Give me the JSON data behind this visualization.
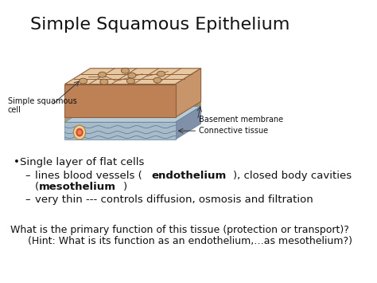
{
  "title": "Simple Squamous Epithelium",
  "title_fontsize": 16,
  "title_fontfamily": "DejaVu Sans",
  "bg_color": "#ffffff",
  "text_color": "#111111",
  "label_simple_squamous": "Simple squamous\ncell",
  "label_basement": "Basement membrane",
  "label_connective": "Connective tissue",
  "cell_color": "#deb887",
  "cell_edge_color": "#8b6040",
  "cell_face_light": "#e8c8a0",
  "basement_top_color": "#c8c0a0",
  "connective_top_color": "#b8ccd8",
  "connective_front_color": "#a8bcc8",
  "bullet1": "Single layer of flat cells",
  "sub1_p1": "lines blood vessels (",
  "sub1_b1": "endothelium",
  "sub1_p2": "), closed body cavities",
  "sub1_cont_p1": "(",
  "sub1_cont_b2": "mesothelium",
  "sub1_cont_p3": ")",
  "sub2": "very thin --- controls diffusion, osmosis and filtration",
  "question_line1": "What is the primary function of this tissue (protection or transport)?",
  "question_line2": "(Hint: What is its function as an endothelium,…as mesothelium?)",
  "main_fontsize": 9.5,
  "label_fontsize": 7,
  "question_fontsize": 9
}
